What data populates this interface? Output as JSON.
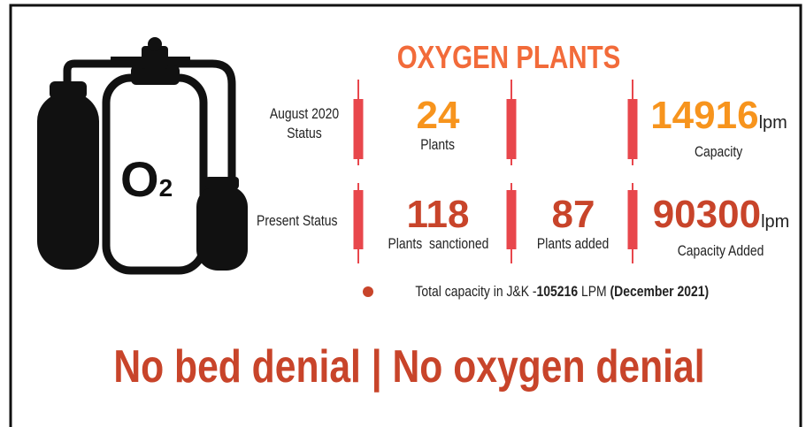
{
  "header": {
    "title": "OXYGEN PLANTS"
  },
  "icon": {
    "symbol": "O",
    "subscript": "2"
  },
  "rows": [
    {
      "label": "August 2020 Status",
      "cells": [
        {
          "value": 24,
          "label": "Plants"
        },
        {},
        {
          "value": 14916,
          "unit": "lpm",
          "label": "Capacity"
        }
      ]
    },
    {
      "label": "Present Status",
      "cells": [
        {
          "value": 118,
          "label": "Plants  sanctioned"
        },
        {
          "value": 87,
          "label": "Plants added"
        },
        {
          "value": 90300,
          "unit": "lpm",
          "label": "Capacity Added"
        }
      ]
    }
  ],
  "footnote": {
    "text": "Total capacity in J&K -",
    "value": 105216,
    "unit": "LPM",
    "date": "(December 2021)"
  },
  "slogan": "No bed denial | No oxygen denial"
}
